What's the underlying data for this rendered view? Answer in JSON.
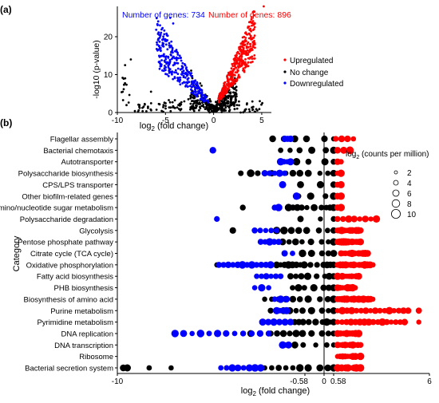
{
  "chart_data": [
    {
      "panel_label": "(a)",
      "type": "scatter",
      "subtype": "volcano",
      "xlabel_main": "log",
      "xlabel_sub": "2",
      "xlabel_rest": " (fold change)",
      "ylabel": "-log10 (p-value)",
      "xlim": [
        -10,
        6
      ],
      "ylim": [
        0,
        28
      ],
      "x_ticks": [
        "-10",
        "-5",
        "0",
        "5"
      ],
      "y_ticks": [
        "0",
        "10",
        "20"
      ],
      "annotation_left": "Number of genes: 734",
      "annotation_right": "Number of genes: 896",
      "legend": [
        "Upregulated",
        "No change",
        "Downregulated"
      ],
      "legend_position": "right",
      "series": [
        {
          "name": "Upregulated",
          "color": "#ff0000",
          "count": 896
        },
        {
          "name": "No change",
          "color": "#000000"
        },
        {
          "name": "Downregulated",
          "color": "#0000ff",
          "count": 734
        }
      ]
    },
    {
      "panel_label": "(b)",
      "type": "scatter",
      "subtype": "bubble",
      "xlabel_main": "log",
      "xlabel_sub": "2",
      "xlabel_rest": " (fold change)",
      "ylabel": "Category",
      "xlim": [
        -10,
        6
      ],
      "x_ticks": [
        "-10",
        "-0.58",
        "0",
        "0.58",
        "6"
      ],
      "threshold_lines": [
        -0.58,
        0.58
      ],
      "size_legend_title_main": "log",
      "size_legend_title_sub": "2",
      "size_legend_title_rest": " (counts per million)",
      "size_legend_values": [
        "2",
        "4",
        "6",
        "8",
        "10"
      ],
      "categories": [
        "Flagellar assembly",
        "Bacterial chemotaxis",
        "Autotransporter",
        "Polysaccharide biosynthesis",
        "CPS/LPS transporter",
        "Other biofilm-related genes",
        "Amino/nucleotide sugar metabolism",
        "Polysaccharide degradation",
        "Glycolysis",
        "Pentose phosphate pathway",
        "Citrate cycle (TCA cycle)",
        "Oxidative phosphorylation",
        "Fatty acid biosynthesis",
        "PHB biosynthesis",
        "Biosynthesis of amino acid",
        "Purine metabolism",
        "Pyrimidine metabolism",
        "DNA replication",
        "DNA transcription",
        "Ribosome",
        "Bacterial secretion system"
      ],
      "down_ranges": [
        [
          -1.6,
          -1.3
        ],
        [
          -5.2,
          -3.0
        ],
        [
          -1.8,
          -1.3
        ],
        [
          -2.6,
          -1.6
        ],
        [
          -1.7,
          -1.5
        ],
        [
          -1.0,
          -1.0
        ],
        [
          -2.1,
          -1.9
        ],
        [
          -5.0,
          -5.0
        ],
        [
          -3.1,
          -2.0
        ],
        [
          -2.8,
          -1.9
        ],
        [
          -1.6,
          -1.2
        ],
        [
          -4.9,
          -2.3
        ],
        [
          -3.0,
          -1.8
        ],
        [
          -3.1,
          -2.4
        ],
        [
          -2.1,
          -1.5
        ],
        [
          -2.0,
          -1.5
        ],
        [
          -2.7,
          -1.3
        ],
        [
          -7.1,
          -2.4
        ],
        [
          -1.7,
          -1.4
        ],
        [
          0,
          0
        ],
        [
          -4.8,
          -2.8
        ]
      ],
      "down_counts": [
        3,
        1,
        4,
        5,
        1,
        1,
        2,
        1,
        5,
        5,
        2,
        12,
        6,
        3,
        3,
        4,
        6,
        12,
        3,
        0,
        8
      ],
      "none_ranges": [
        [
          -2.2,
          0.58
        ],
        [
          -1.8,
          0.58
        ],
        [
          -1.0,
          0.58
        ],
        [
          -3.3,
          0.58
        ],
        [
          -0.8,
          0.58
        ],
        [
          -0.9,
          0.58
        ],
        [
          -1.4,
          0.58
        ],
        [
          -0.8,
          0.58
        ],
        [
          -2.0,
          0.58
        ],
        [
          -1.7,
          0.58
        ],
        [
          -0.7,
          0.58
        ],
        [
          -2.0,
          0.58
        ],
        [
          -1.3,
          0.58
        ],
        [
          -1.2,
          0.58
        ],
        [
          -2.6,
          0.58
        ],
        [
          -2.3,
          0.58
        ],
        [
          -1.3,
          0.58
        ],
        [
          -2.3,
          0.58
        ],
        [
          -1.5,
          0.58
        ],
        [
          0,
          0
        ],
        [
          -2.6,
          0.58
        ]
      ],
      "none_counts": [
        6,
        6,
        4,
        12,
        3,
        4,
        10,
        3,
        8,
        8,
        5,
        14,
        8,
        7,
        10,
        10,
        10,
        10,
        6,
        0,
        10
      ],
      "none_outliers": [
        [],
        [],
        [],
        [
          -3.8
        ],
        [],
        [],
        [
          -3.7
        ],
        [],
        [
          -4.2
        ],
        [],
        [],
        [
          -5.0
        ],
        [],
        [],
        [],
        [],
        [],
        [
          -3.3
        ],
        [],
        [],
        [
          -9.7,
          -9.5,
          -8.4,
          -7.3
        ]
      ],
      "up_ranges": [
        [
          0.7,
          1.7
        ],
        [
          0.8,
          1.5
        ],
        [
          0.8,
          1.0
        ],
        [
          0.8,
          1.0
        ],
        [
          0.8,
          1.0
        ],
        [
          0.8,
          1.0
        ],
        [
          0.8,
          1.0
        ],
        [
          0.8,
          3.0
        ],
        [
          0.8,
          2.1
        ],
        [
          0.8,
          2.1
        ],
        [
          1.0,
          2.5
        ],
        [
          0.8,
          2.8
        ],
        [
          0.8,
          2.0
        ],
        [
          0.8,
          1.8
        ],
        [
          0.8,
          2.8
        ],
        [
          0.8,
          4.8
        ],
        [
          0.8,
          4.6
        ],
        [
          0.8,
          2.0
        ],
        [
          0.8,
          2.1
        ],
        [
          0.8,
          2.1
        ],
        [
          0.8,
          2.1
        ]
      ],
      "up_counts": [
        4,
        3,
        2,
        2,
        2,
        2,
        2,
        8,
        12,
        12,
        13,
        14,
        10,
        8,
        16,
        16,
        16,
        8,
        10,
        10,
        12
      ],
      "up_outliers": [
        [],
        [],
        [],
        [],
        [],
        [],
        [],
        [],
        [],
        [],
        [],
        [],
        [],
        [],
        [],
        [
          5.4
        ],
        [
          5.4
        ],
        [],
        [],
        [],
        []
      ]
    }
  ]
}
